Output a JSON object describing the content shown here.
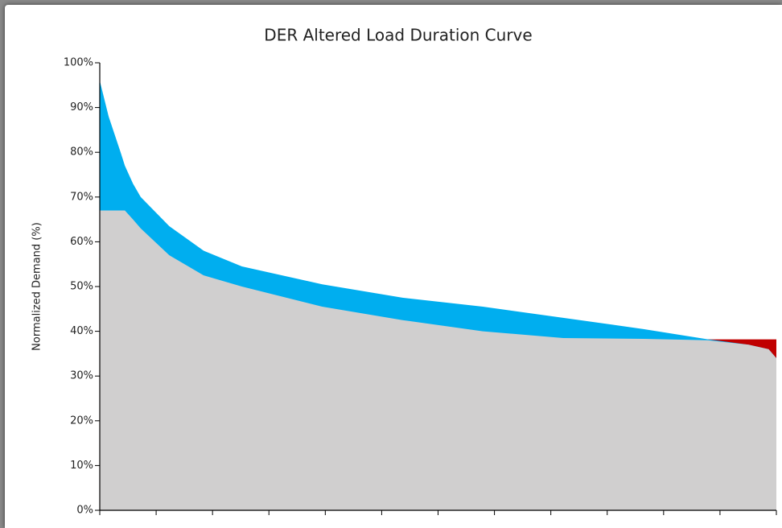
{
  "chart_data": {
    "type": "area",
    "title": "DER Altered Load Duration Curve",
    "y_label": "Normalized Demand (%)",
    "x": [
      0,
      115,
      270,
      325,
      430,
      530,
      900,
      1345,
      1840,
      2880,
      3920,
      4960,
      6000,
      7040,
      7875,
      8400,
      8660,
      8760
    ],
    "series": [
      {
        "color": "#c00000",
        "values": [
          67,
          67,
          67,
          67,
          65,
          63,
          57,
          52.5,
          50,
          45.5,
          42.5,
          40,
          38.5,
          38.3,
          38.2,
          38.2,
          38.2,
          38.2
        ]
      },
      {
        "color": "#00aeef",
        "values": [
          96,
          88,
          80,
          77,
          73,
          70,
          63.5,
          58,
          54.5,
          50.5,
          47.5,
          45.5,
          43,
          40.5,
          38.2,
          37,
          36,
          34
        ]
      },
      {
        "color": "#d0cfcf",
        "values": [
          67,
          67,
          67,
          67,
          65,
          63,
          57,
          52.5,
          50,
          45.5,
          42.5,
          40,
          38.5,
          38.3,
          38,
          37,
          36,
          34
        ]
      }
    ],
    "xlim": [
      0,
      8760
    ],
    "xticks": [
      0,
      730,
      1460,
      2190,
      2920,
      3650,
      4380,
      5110,
      5840,
      6570,
      7300,
      8030,
      8760
    ],
    "ylim": [
      0,
      100
    ],
    "yticks": [
      {
        "value": 0,
        "label": "0%"
      },
      {
        "value": 10,
        "label": "10%"
      },
      {
        "value": 20,
        "label": "20%"
      },
      {
        "value": 30,
        "label": "30%"
      },
      {
        "value": 40,
        "label": "40%"
      },
      {
        "value": 50,
        "label": "50%"
      },
      {
        "value": 60,
        "label": "60%"
      },
      {
        "value": 70,
        "label": "70%"
      },
      {
        "value": 80,
        "label": "80%"
      },
      {
        "value": 90,
        "label": "90%"
      },
      {
        "value": 100,
        "label": "100%"
      }
    ]
  }
}
